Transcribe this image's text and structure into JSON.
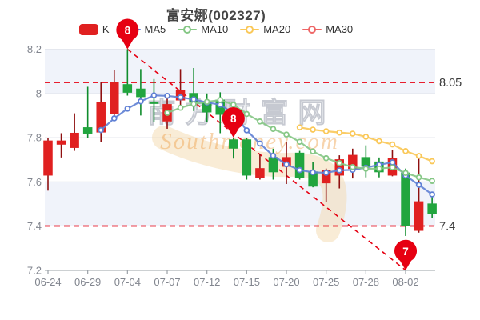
{
  "ui": {
    "header": {
      "title": "富安娜(002327)"
    },
    "legend": {
      "items": [
        {
          "label": "K",
          "type": "rect",
          "color": "#e02020"
        },
        {
          "label": "MA5",
          "type": "line",
          "color": "#5e7fd4"
        },
        {
          "label": "MA10",
          "type": "line",
          "color": "#85c785"
        },
        {
          "label": "MA20",
          "type": "line",
          "color": "#fac858"
        },
        {
          "label": "MA30",
          "type": "line",
          "color": "#ee6666"
        }
      ]
    }
  },
  "watermark": {
    "text_cn": "南方财富网",
    "text_en": "Southmoney.com"
  },
  "colors": {
    "up_body": "#e02020",
    "up_wick": "#8f1010",
    "down_body": "#21a53e",
    "down_wick": "#0f8c2c",
    "ma5": "#5e7fd4",
    "ma10": "#85c785",
    "ma20": "#fac858",
    "ma30": "#ee6666",
    "balloon": "#e60012",
    "ref_line": "#e60012",
    "grid": "#e4e7ee",
    "band": "#f0f3fa",
    "axis": "#9aa0a6",
    "tick_label": "#82868f",
    "right_label": "#3a3a3a",
    "watermark_cn_fill": "#eceef2",
    "watermark_cn_stroke": "#b9bcc6",
    "watermark_en": "#efa14b",
    "watermark_swoosh": "#f3d9ad"
  },
  "chart_data": {
    "type": "candlestick",
    "title": "富安娜(002327)",
    "dates": [
      "06-24",
      "06-27",
      "06-28",
      "06-29",
      "06-30",
      "07-01",
      "07-04",
      "07-05",
      "07-06",
      "07-07",
      "07-11",
      "07-08",
      "07-12",
      "07-13",
      "07-14",
      "07-15",
      "07-18",
      "07-19",
      "07-20",
      "07-21",
      "07-22",
      "07-25",
      "07-26",
      "07-27",
      "07-28",
      "07-29",
      "08-01",
      "08-02",
      "08-03",
      "08-04"
    ],
    "x_labels": [
      "06-24",
      "06-29",
      "07-04",
      "07-07",
      "07-12",
      "07-15",
      "07-20",
      "07-25",
      "07-28",
      "08-02"
    ],
    "x_label_indices": [
      0,
      3,
      6,
      9,
      12,
      15,
      18,
      21,
      24,
      27
    ],
    "ohlc_order": "open,close,high,low",
    "ohlc": [
      [
        7.63,
        7.785,
        7.8,
        7.56
      ],
      [
        7.77,
        7.785,
        7.82,
        7.71
      ],
      [
        7.755,
        7.82,
        7.91,
        7.74
      ],
      [
        7.845,
        7.82,
        8.03,
        7.8
      ],
      [
        7.825,
        7.96,
        8.05,
        7.78
      ],
      [
        7.91,
        8.05,
        8.105,
        7.88
      ],
      [
        8.04,
        8.005,
        8.2,
        7.99
      ],
      [
        8.02,
        7.985,
        8.11,
        7.9
      ],
      [
        7.96,
        7.955,
        8.065,
        7.87
      ],
      [
        7.875,
        7.95,
        7.99,
        7.84
      ],
      [
        7.97,
        8.015,
        8.11,
        7.935
      ],
      [
        8.0,
        7.96,
        8.115,
        7.92
      ],
      [
        7.958,
        7.916,
        8.0,
        7.87
      ],
      [
        7.97,
        7.905,
        8.005,
        7.82
      ],
      [
        7.79,
        7.752,
        7.8,
        7.705
      ],
      [
        7.79,
        7.63,
        7.8,
        7.61
      ],
      [
        7.62,
        7.66,
        7.725,
        7.61
      ],
      [
        7.71,
        7.645,
        7.75,
        7.61
      ],
      [
        7.67,
        7.71,
        7.78,
        7.59
      ],
      [
        7.73,
        7.62,
        7.74,
        7.61
      ],
      [
        7.645,
        7.58,
        7.69,
        7.575
      ],
      [
        7.595,
        7.65,
        7.66,
        7.51
      ],
      [
        7.63,
        7.7,
        7.72,
        7.57
      ],
      [
        7.66,
        7.72,
        7.75,
        7.615
      ],
      [
        7.71,
        7.67,
        7.765,
        7.62
      ],
      [
        7.69,
        7.645,
        7.71,
        7.62
      ],
      [
        7.63,
        7.705,
        7.745,
        7.625
      ],
      [
        7.64,
        7.4,
        7.66,
        7.355
      ],
      [
        7.38,
        7.51,
        7.72,
        7.37
      ],
      [
        7.5,
        7.457,
        7.55,
        7.435
      ]
    ],
    "series": [
      {
        "name": "MA5",
        "start": 4,
        "values": [
          7.834,
          7.887,
          7.931,
          7.964,
          7.991,
          7.989,
          7.982,
          7.973,
          7.959,
          7.949,
          7.91,
          7.833,
          7.773,
          7.718,
          7.679,
          7.653,
          7.643,
          7.641,
          7.652,
          7.654,
          7.664,
          7.677,
          7.688,
          7.628,
          7.586,
          7.543
        ]
      },
      {
        "name": "MA10",
        "start": 9,
        "values": [
          7.912,
          7.935,
          7.952,
          7.962,
          7.97,
          7.949,
          7.907,
          7.873,
          7.839,
          7.814,
          7.781,
          7.738,
          7.707,
          7.685,
          7.667,
          7.659,
          7.66,
          7.665,
          7.64,
          7.62,
          7.604
        ]
      },
      {
        "name": "MA20",
        "start": 19,
        "values": [
          7.846,
          7.836,
          7.829,
          7.823,
          7.818,
          7.804,
          7.784,
          7.769,
          7.739,
          7.717,
          7.693
        ]
      },
      {
        "name": "MA30",
        "start": null,
        "values": []
      }
    ],
    "ylim": [
      7.2,
      8.2
    ],
    "y_ticks": [
      {
        "value": 8.2,
        "label": "8.2"
      },
      {
        "value": 8.0,
        "label": "8"
      },
      {
        "value": 7.8,
        "label": "7.8"
      },
      {
        "value": 7.6,
        "label": "7.6"
      },
      {
        "value": 7.4,
        "label": "7.4"
      },
      {
        "value": 7.2,
        "label": "7.2"
      }
    ],
    "shaded_bands": [
      [
        8.2,
        8.0
      ],
      [
        7.6,
        7.4
      ]
    ],
    "ref_lines": [
      {
        "value": 8.05,
        "label": "8.05"
      },
      {
        "value": 7.4,
        "label": "7.4"
      }
    ],
    "trend_line": {
      "from": {
        "index": 6,
        "value": 8.2
      },
      "to": {
        "index": 27,
        "value": 7.2
      }
    },
    "balloon_markers": [
      {
        "index": 6,
        "value": 8.2,
        "label": "8"
      },
      {
        "index": 14,
        "value": 7.8,
        "label": "8"
      },
      {
        "index": 27,
        "value": 7.2,
        "label": "7"
      }
    ],
    "grid_values": [
      8.2,
      8.0,
      7.8,
      7.6
    ],
    "legend_entries": [
      "K",
      "MA5",
      "MA10",
      "MA20",
      "MA30"
    ]
  }
}
